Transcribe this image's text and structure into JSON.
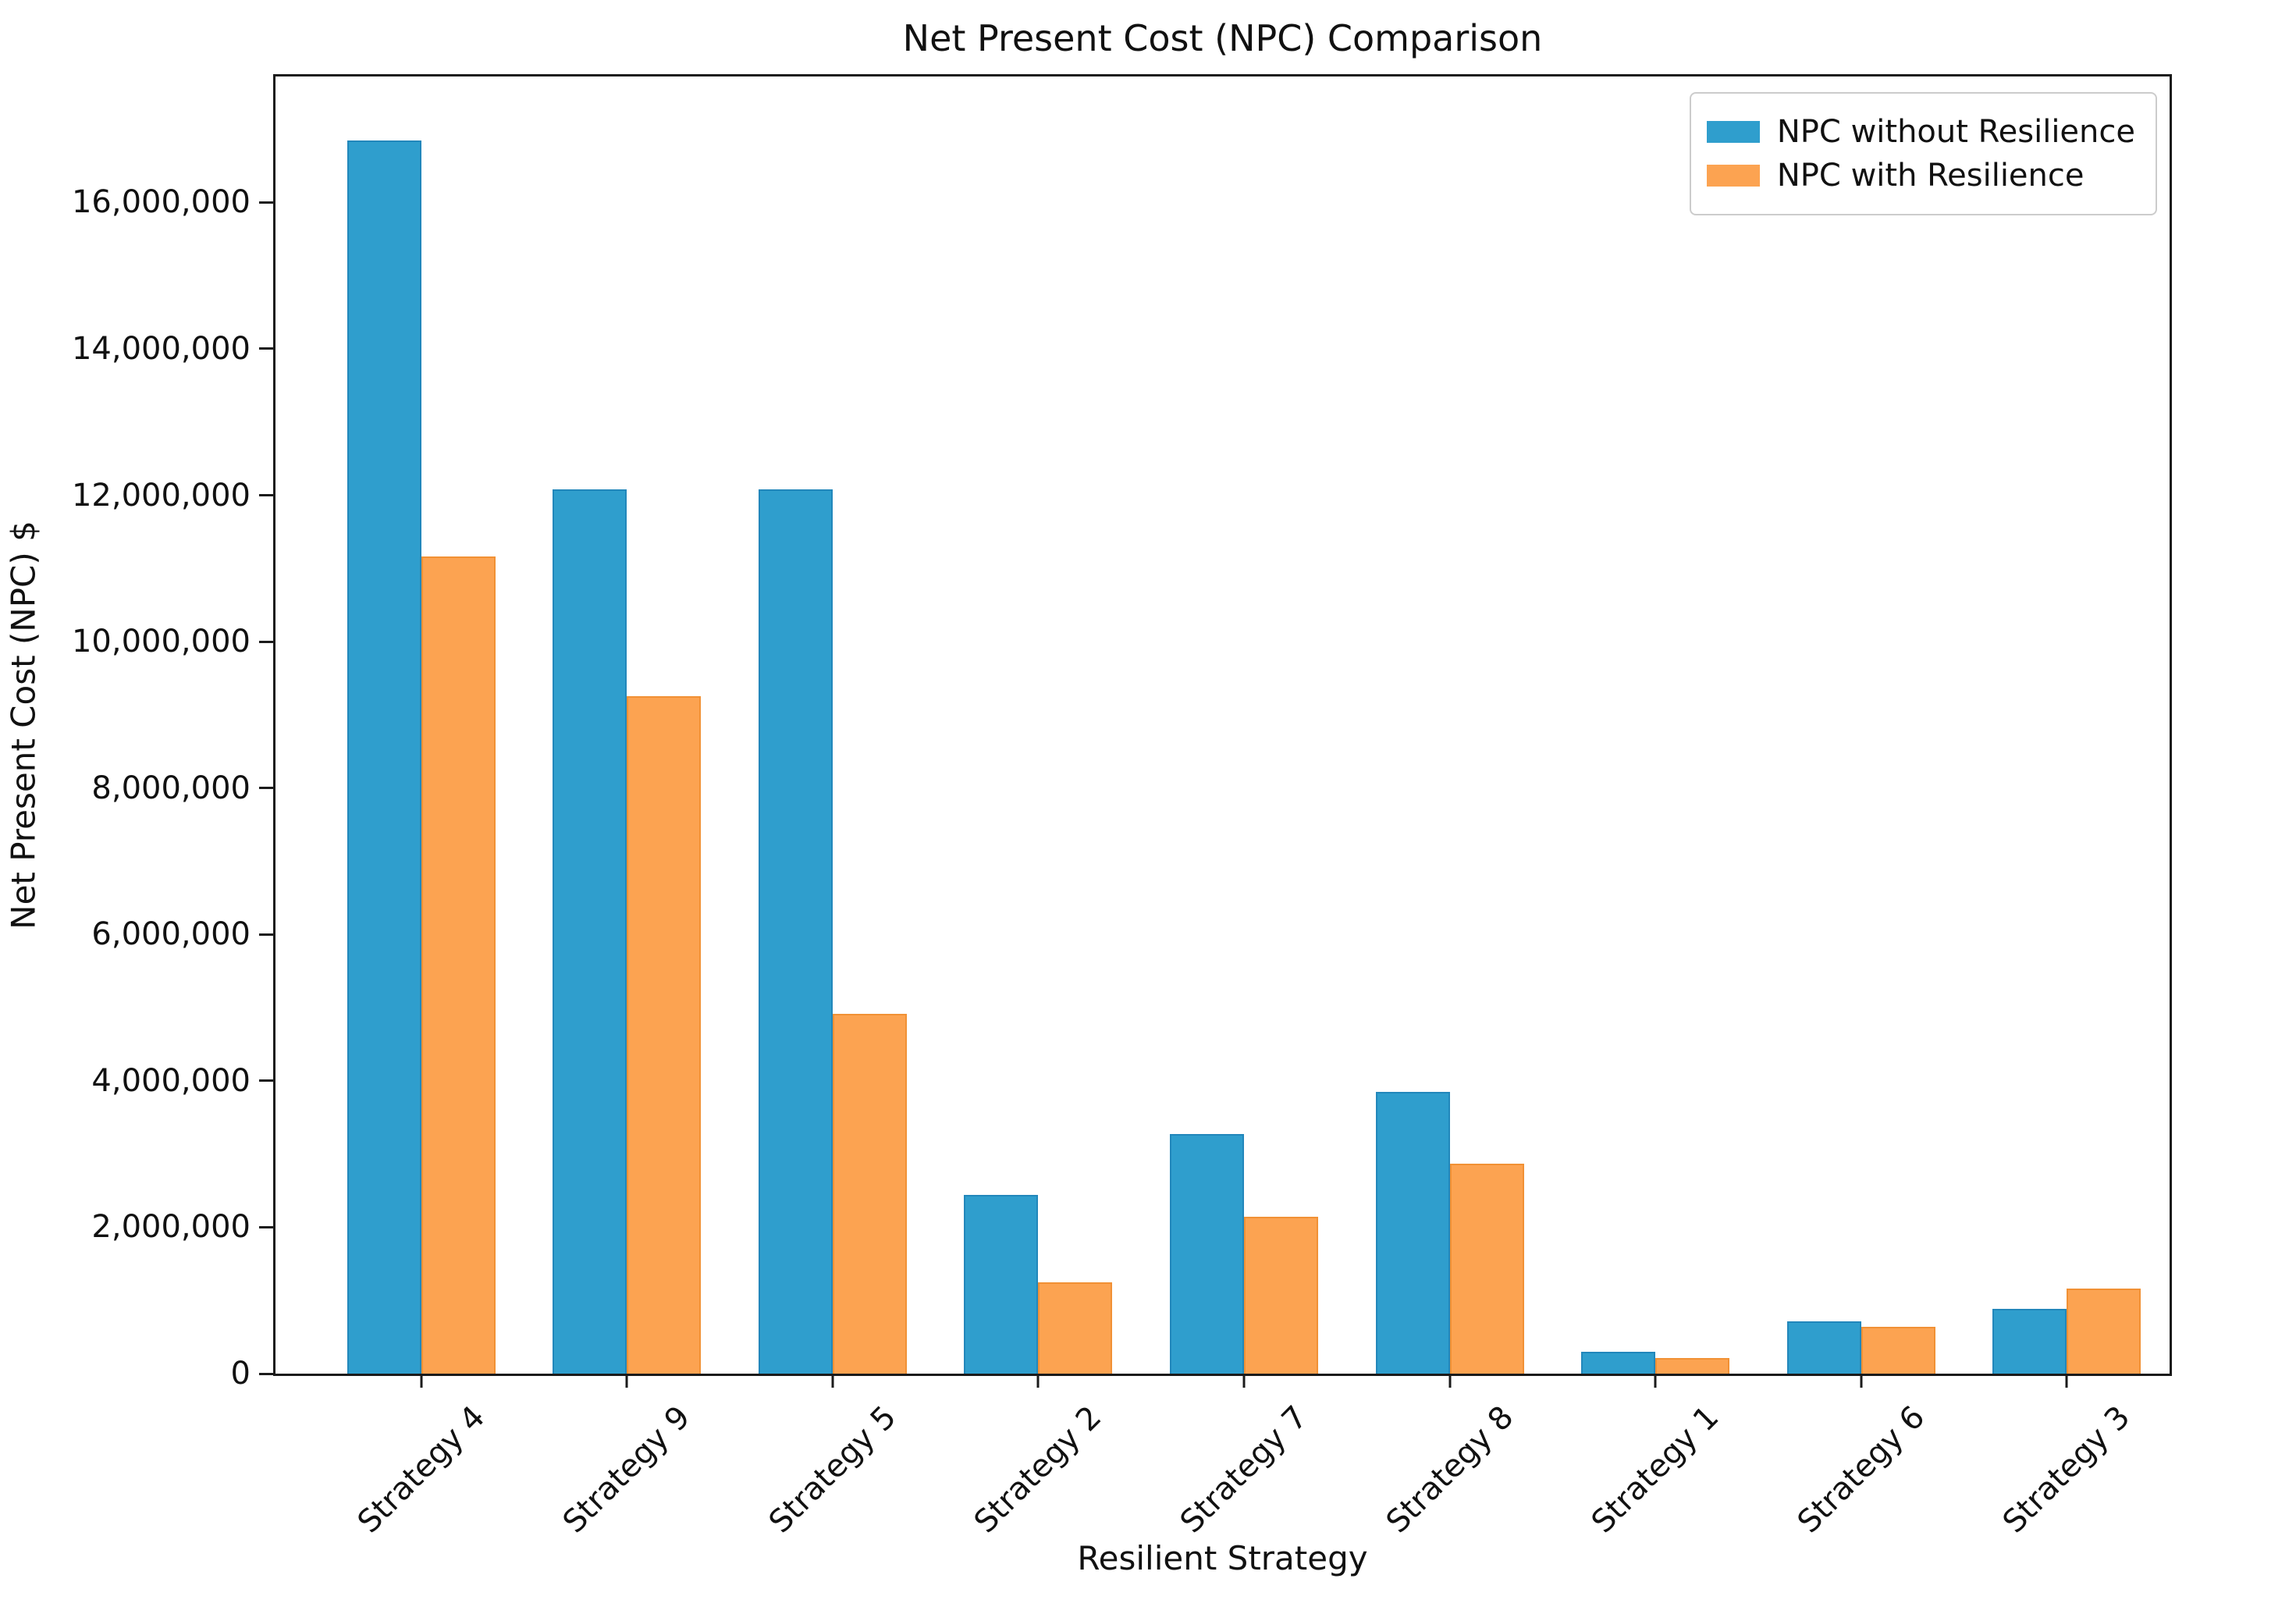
{
  "chart_data": {
    "type": "bar",
    "title": "Net Present Cost (NPC) Comparison",
    "xlabel": "Resilient Strategy",
    "ylabel": "Net Present Cost (NPC) $",
    "categories": [
      "Strategy 4",
      "Strategy 9",
      "Strategy 5",
      "Strategy 2",
      "Strategy 7",
      "Strategy 8",
      "Strategy 1",
      "Strategy 6",
      "Strategy 3"
    ],
    "series": [
      {
        "name": "NPC without Resilience",
        "color": "#2F9ECD",
        "edge_color": "#2287BB",
        "values": [
          16850000,
          12080000,
          12080000,
          2440000,
          3270000,
          3850000,
          300000,
          710000,
          890000
        ]
      },
      {
        "name": "NPC with Resilience",
        "color": "#FCA351",
        "edge_color": "#F19135",
        "values": [
          11160000,
          9250000,
          4920000,
          1250000,
          2140000,
          2870000,
          210000,
          640000,
          1160000
        ]
      }
    ],
    "ylim": [
      0,
      17720000
    ],
    "yticks": [
      {
        "value": 0,
        "label": "0"
      },
      {
        "value": 2000000,
        "label": "2,000,000"
      },
      {
        "value": 4000000,
        "label": "4,000,000"
      },
      {
        "value": 6000000,
        "label": "6,000,000"
      },
      {
        "value": 8000000,
        "label": "8,000,000"
      },
      {
        "value": 10000000,
        "label": "10,000,000"
      },
      {
        "value": 12000000,
        "label": "12,000,000"
      },
      {
        "value": 14000000,
        "label": "14,000,000"
      },
      {
        "value": 16000000,
        "label": "16,000,000"
      }
    ],
    "legend_position": "upper right",
    "grid": false,
    "axis_color": "#1b1b1b"
  }
}
